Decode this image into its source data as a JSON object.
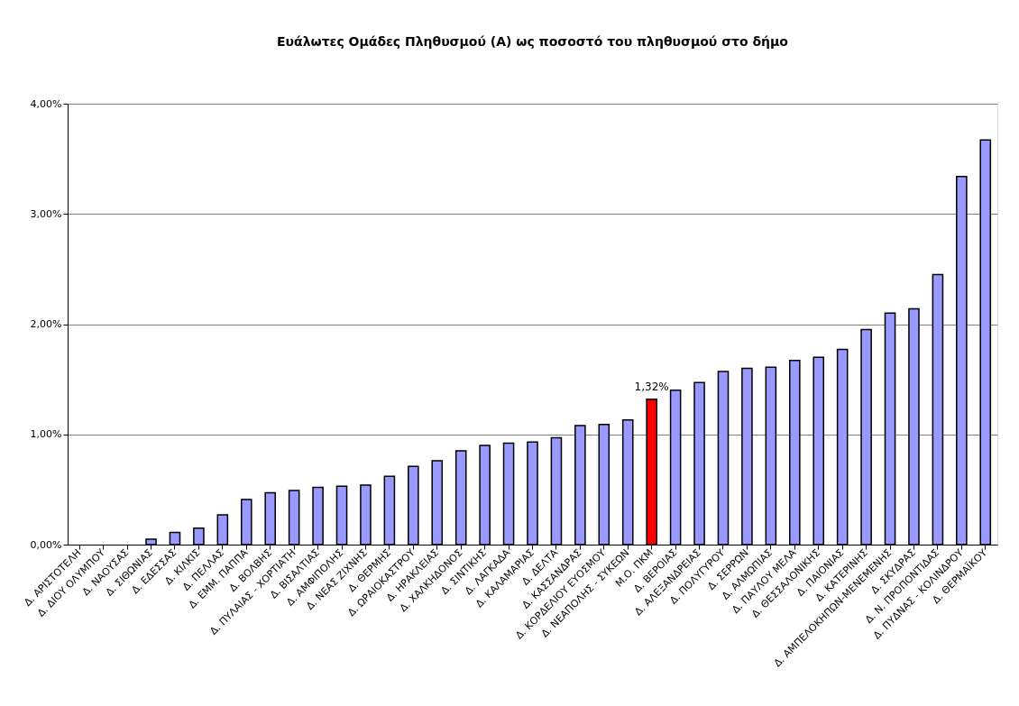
{
  "chart_data": {
    "type": "bar",
    "title": "Ευάλωτες Ομάδες Πληθυσμού (Α) ως ποσοστό του πληθυσμού στο δήμο",
    "categories": [
      "Δ. ΑΡΙΣΤΟΤΕΛΗ",
      "Δ. ΔΙΟΥ ΟΛΥΜΠΟΥ",
      "Δ. ΝΑΟΥΣΑΣ",
      "Δ. ΣΙΘΩΝΙΑΣ",
      "Δ. ΕΔΕΣΣΑΣ",
      "Δ. ΚΙΛΚΙΣ",
      "Δ. ΠΕΛΛΑΣ",
      "Δ. ΕΜΜ. ΠΑΠΠΑ",
      "Δ. ΒΟΛΒΗΣ",
      "Δ. ΠΥΛΑΙΑΣ - ΧΟΡΤΙΑΤΗ",
      "Δ. ΒΙΣΑΛΤΙΑΣ",
      "Δ. ΑΜΦΙΠΟΛΗΣ",
      "Δ. ΝΕΑΣ ΖΙΧΝΗΣ",
      "Δ. ΘΕΡΜΗΣ",
      "Δ. ΩΡΑΙΟΚΑΣΤΡΟΥ",
      "Δ. ΗΡΑΚΛΕΙΑΣ",
      "Δ. ΧΑΛΚΗΔΟΝΟΣ",
      "Δ. ΣΙΝΤΙΚΗΣ",
      "Δ. ΛΑΓΚΑΔΑ",
      "Δ. ΚΑΛΑΜΑΡΙΑΣ",
      "Δ. ΔΕΛΤΑ",
      "Δ. ΚΑΣΣΑΝΔΡΑΣ",
      "Δ. ΚΟΡΔΕΛΙΟΥ ΕΥΟΣΜΟΥ",
      "Δ. ΝΕΑΠΟΛΗΣ - ΣΥΚΕΩΝ",
      "Μ.Ο. ΠΚΜ",
      "Δ. ΒΕΡΟΙΑΣ",
      "Δ. ΑΛΕΞΑΝΔΡΕΙΑΣ",
      "Δ. ΠΟΛΥΓΥΡΟΥ",
      "Δ. ΣΕΡΡΩΝ",
      "Δ. ΑΛΜΩΠΙΑΣ",
      "Δ. ΠΑΥΛΟΥ ΜΕΛΑ",
      "Δ. ΘΕΣΣΑΛΟΝΙΚΗΣ",
      "Δ. ΠΑΙΟΝΙΑΣ",
      "Δ. ΚΑΤΕΡΙΝΗΣ",
      "Δ. ΑΜΠΕΛΟΚΗΠΩΝ-ΜΕΝΕΜΕΝΗΣ",
      "Δ. ΣΚΥΔΡΑΣ",
      "Δ. Ν. ΠΡΟΠΟΝΤΙΔΑΣ",
      "Δ. ΠΥΔΝΑΣ - ΚΟΛΙΝΔΡΟΥ",
      "Δ. ΘΕΡΜΑΪΚΟΥ"
    ],
    "values": [
      0,
      0,
      0,
      0.05,
      0.11,
      0.15,
      0.27,
      0.41,
      0.47,
      0.49,
      0.52,
      0.53,
      0.54,
      0.62,
      0.71,
      0.76,
      0.85,
      0.9,
      0.92,
      0.93,
      0.97,
      1.08,
      1.09,
      1.13,
      1.32,
      1.4,
      1.47,
      1.57,
      1.6,
      1.61,
      1.67,
      1.7,
      1.77,
      1.95,
      2.1,
      2.14,
      2.45,
      3.34,
      3.67
    ],
    "colors": [
      "#9999ff",
      "#9999ff",
      "#9999ff",
      "#9999ff",
      "#9999ff",
      "#9999ff",
      "#9999ff",
      "#9999ff",
      "#9999ff",
      "#9999ff",
      "#9999ff",
      "#9999ff",
      "#9999ff",
      "#9999ff",
      "#9999ff",
      "#9999ff",
      "#9999ff",
      "#9999ff",
      "#9999ff",
      "#9999ff",
      "#9999ff",
      "#9999ff",
      "#9999ff",
      "#9999ff",
      "#ff0000",
      "#9999ff",
      "#9999ff",
      "#9999ff",
      "#9999ff",
      "#9999ff",
      "#9999ff",
      "#9999ff",
      "#9999ff",
      "#9999ff",
      "#9999ff",
      "#9999ff",
      "#9999ff",
      "#9999ff",
      "#9999ff"
    ],
    "value_labels": [
      null,
      null,
      null,
      null,
      null,
      null,
      null,
      null,
      null,
      null,
      null,
      null,
      null,
      null,
      null,
      null,
      null,
      null,
      null,
      null,
      null,
      null,
      null,
      null,
      "1,32%",
      null,
      null,
      null,
      null,
      null,
      null,
      null,
      null,
      null,
      null,
      null,
      null,
      null,
      null
    ],
    "ylim": [
      0,
      4
    ],
    "yticks": [
      {
        "value": 0,
        "label": "0,00%"
      },
      {
        "value": 1,
        "label": "1,00%"
      },
      {
        "value": 2,
        "label": "2,00%"
      },
      {
        "value": 3,
        "label": "3,00%"
      },
      {
        "value": 4,
        "label": "4,00%"
      }
    ],
    "grid": "y"
  }
}
